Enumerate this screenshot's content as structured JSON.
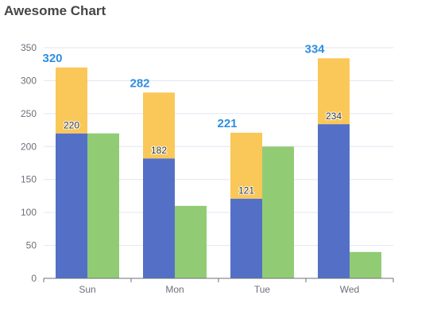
{
  "colors": {
    "series_a": "#5470c6",
    "series_b": "#fac858",
    "series_c": "#91cc75",
    "total_label": "#2f8ee0",
    "axis": "#6e7079",
    "grid": "#e0e6f1"
  },
  "chart_data": {
    "type": "bar",
    "title": "Awesome Chart",
    "categories": [
      "Sun",
      "Mon",
      "Tue",
      "Wed"
    ],
    "series": [
      {
        "values": [
          220,
          182,
          121,
          234
        ],
        "stack": "total",
        "color": "#5470c6"
      },
      {
        "values": [
          100,
          100,
          100,
          100
        ],
        "stack": "total",
        "color": "#fac858"
      },
      {
        "values": [
          220,
          110,
          200,
          40
        ],
        "color": "#91cc75"
      }
    ],
    "stack_totals": [
      320,
      282,
      221,
      334
    ],
    "yticks": [
      0,
      50,
      100,
      150,
      200,
      250,
      300,
      350
    ],
    "ylim": [
      0,
      350
    ],
    "grid": true,
    "legend": "none",
    "xlabel": "",
    "ylabel": ""
  }
}
